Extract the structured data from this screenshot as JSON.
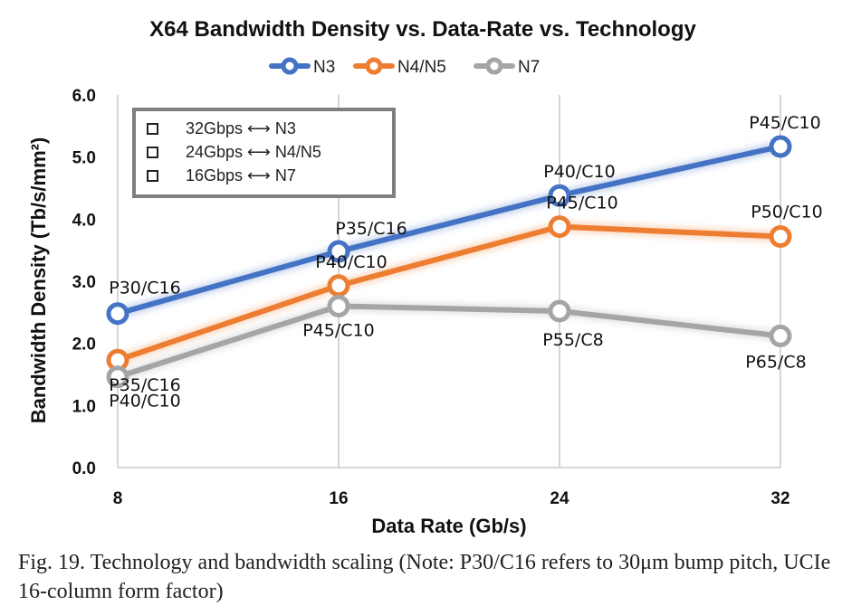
{
  "chart_data": {
    "type": "line",
    "title": "X64 Bandwidth Density vs. Data-Rate vs. Technology",
    "xlabel": "Data Rate (Gb/s)",
    "ylabel": "Bandwidth Density (Tb/s/mm²)",
    "x": [
      8,
      16,
      24,
      32
    ],
    "x_tick_labels": [
      "8",
      "16",
      "24",
      "32"
    ],
    "ylim": [
      0,
      6
    ],
    "y_tick_labels": [
      "0.0",
      "1.0",
      "2.0",
      "3.0",
      "4.0",
      "5.0",
      "6.0"
    ],
    "grid": "vertical",
    "legend_position": "top",
    "series": [
      {
        "name": "N3",
        "color": "#4472C4",
        "values": [
          2.48,
          3.48,
          4.38,
          5.17
        ],
        "point_labels": [
          "P30/C16",
          "P35/C16",
          "P40/C10",
          "P45/C10"
        ]
      },
      {
        "name": "N4/N5",
        "color": "#ED7D31",
        "values": [
          1.73,
          2.93,
          3.88,
          3.72
        ],
        "point_labels": [
          "P35/C16",
          "P40/C10",
          "P45/C10",
          "P50/C10"
        ]
      },
      {
        "name": "N7",
        "color": "#A5A5A5",
        "values": [
          1.46,
          2.6,
          2.52,
          2.12
        ],
        "point_labels": [
          "P40/C10",
          "P45/C10",
          "P55/C8",
          "P65/C8"
        ]
      }
    ],
    "annotation_box": [
      "32Gbps ⟷ N3",
      "24Gbps ⟷ N4/N5",
      "16Gbps ⟷ N7"
    ]
  },
  "caption": "Fig. 19. Technology and bandwidth scaling (Note: P30/C16 refers to 30μm bump pitch, UCIe 16-column form factor)"
}
